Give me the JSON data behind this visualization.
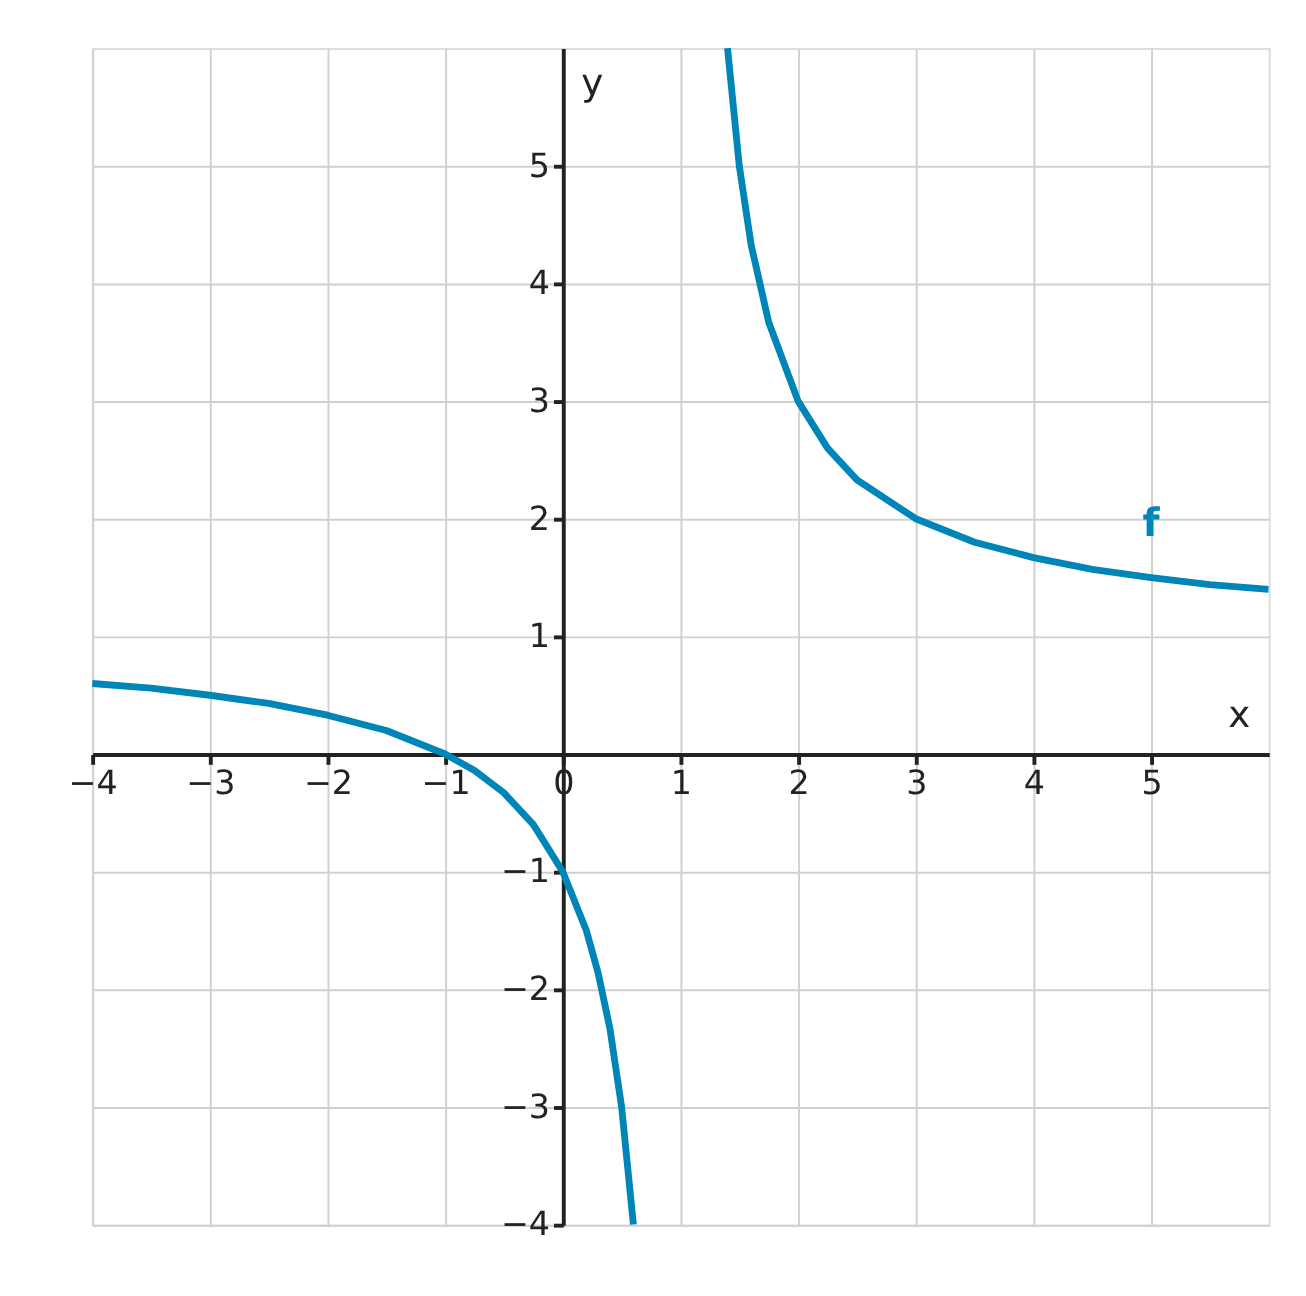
{
  "chart_data": {
    "type": "line",
    "xlabel": "x",
    "ylabel": "y",
    "xlim": [
      -4,
      6
    ],
    "ylim": [
      -4,
      6
    ],
    "xticks": [
      -4,
      -3,
      -2,
      -1,
      0,
      1,
      2,
      3,
      4,
      5
    ],
    "yticks": [
      -4,
      -3,
      -2,
      -1,
      1,
      2,
      3,
      4,
      5
    ],
    "grid": true,
    "marker": "none",
    "line_style": "solid",
    "series": [
      {
        "color": "#0085b8",
        "x": [
          -4,
          -3.5,
          -3,
          -2.5,
          -2,
          -1.5,
          -1,
          -0.75,
          -0.5,
          -0.25,
          0,
          0.2,
          0.3,
          0.4,
          0.5,
          0.6
        ],
        "values": [
          0.6,
          0.56,
          0.5,
          0.43,
          0.33,
          0.2,
          0,
          -0.14,
          -0.33,
          -0.6,
          -1,
          -1.5,
          -1.86,
          -2.33,
          -3,
          -4
        ]
      },
      {
        "color": "#0085b8",
        "x": [
          1.4,
          1.5,
          1.6,
          1.75,
          2,
          2.25,
          2.5,
          3,
          3.5,
          4,
          4.5,
          5,
          5.5,
          6
        ],
        "values": [
          6,
          5,
          4.33,
          3.67,
          3,
          2.6,
          2.33,
          2,
          1.8,
          1.67,
          1.57,
          1.5,
          1.44,
          1.4
        ]
      }
    ],
    "annotations": [
      "f"
    ]
  }
}
